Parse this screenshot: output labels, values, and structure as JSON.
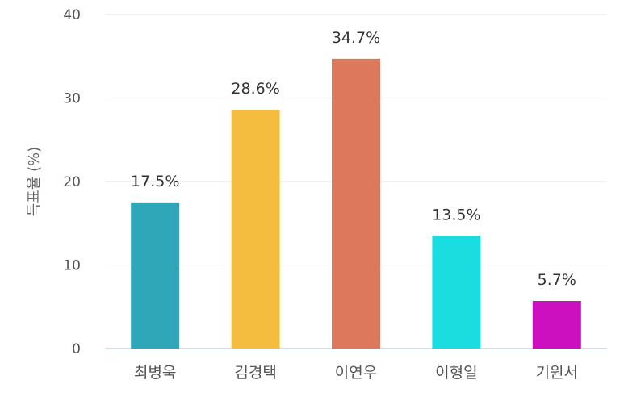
{
  "chart_data": {
    "type": "bar",
    "title": "",
    "xlabel": "",
    "ylabel": "득표율 (%)",
    "ylim": [
      0,
      40
    ],
    "yticks": [
      0,
      10,
      20,
      30,
      40
    ],
    "grid": true,
    "legend": "none",
    "categories": [
      "최병욱",
      "김경택",
      "이연우",
      "이형일",
      "기원서"
    ],
    "values": [
      17.5,
      28.6,
      34.7,
      13.5,
      5.7
    ],
    "data_labels": [
      "17.5%",
      "28.6%",
      "34.7%",
      "13.5%",
      "5.7%"
    ],
    "colors": [
      "#2fa7b8",
      "#f4bd3e",
      "#dc785b",
      "#1bdde0",
      "#cc0fbf"
    ]
  }
}
